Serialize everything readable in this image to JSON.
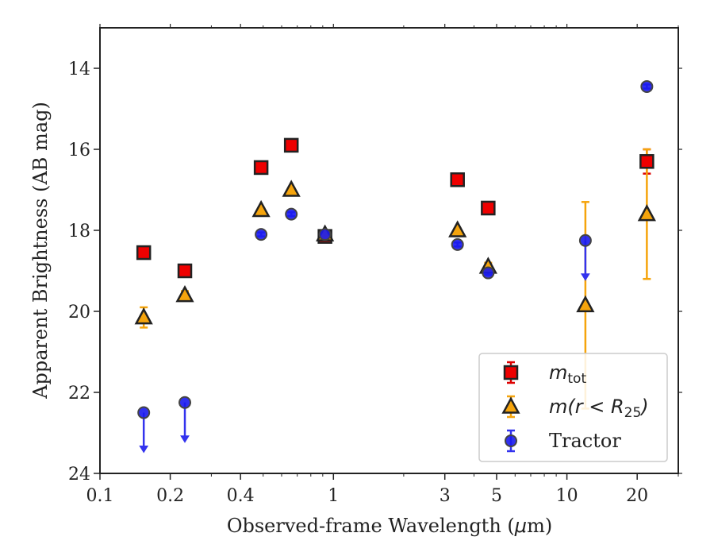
{
  "chart_data": {
    "type": "scatter",
    "xlabel": "Observed-frame Wavelength (μm)",
    "xlabel_parts": [
      "Observed-frame Wavelength (",
      "μ",
      "m)"
    ],
    "ylabel": "Apparent Brightness (AB mag)",
    "xscale": "log",
    "xlim": [
      0.1,
      30
    ],
    "ylim": [
      24,
      13
    ],
    "y_inverted": true,
    "x_ticks": [
      0.1,
      0.2,
      0.4,
      1,
      3,
      5,
      10,
      20
    ],
    "x_tick_labels": [
      "0.1",
      "0.2",
      "0.4",
      "1",
      "3",
      "5",
      "10",
      "20"
    ],
    "y_ticks": [
      14,
      16,
      18,
      20,
      22,
      24
    ],
    "y_tick_labels": [
      "14",
      "16",
      "18",
      "20",
      "22",
      "24"
    ],
    "legend_position": "lower-right",
    "series": [
      {
        "name": "m_tot",
        "legend_main": "m",
        "legend_sub": "tot",
        "marker": "square",
        "face_color": "#ee0000",
        "edge_color": "#222222",
        "error_color": "#dd0000",
        "points": [
          {
            "x": 0.154,
            "y": 18.55,
            "yerr": 0.05
          },
          {
            "x": 0.231,
            "y": 19.0,
            "yerr": 0.05
          },
          {
            "x": 0.49,
            "y": 16.45,
            "yerr": 0.04
          },
          {
            "x": 0.66,
            "y": 15.9,
            "yerr": 0.04
          },
          {
            "x": 0.92,
            "y": 18.15,
            "yerr": 0.05
          },
          {
            "x": 3.4,
            "y": 16.75,
            "yerr": 0.05
          },
          {
            "x": 4.6,
            "y": 17.45,
            "yerr": 0.05
          },
          {
            "x": 22.0,
            "y": 16.3,
            "yerr": 0.3
          }
        ]
      },
      {
        "name": "m(r<R25)",
        "legend_main": "m(r < R",
        "legend_sub": "25",
        "legend_close": ")",
        "marker": "triangle",
        "face_color": "#f5a40c",
        "edge_color": "#222222",
        "error_color": "#f5a40c",
        "points": [
          {
            "x": 0.154,
            "y": 20.15,
            "yerr": 0.25
          },
          {
            "x": 0.231,
            "y": 19.6,
            "yerr": 0.1
          },
          {
            "x": 0.49,
            "y": 17.5,
            "yerr": 0.05
          },
          {
            "x": 0.66,
            "y": 17.0,
            "yerr": 0.05
          },
          {
            "x": 0.92,
            "y": 18.1,
            "yerr": 0.05
          },
          {
            "x": 3.4,
            "y": 18.0,
            "yerr": 0.05
          },
          {
            "x": 4.6,
            "y": 18.9,
            "yerr": 0.1
          },
          {
            "x": 12.0,
            "y": 19.85,
            "yerr": 2.55
          },
          {
            "x": 22.0,
            "y": 17.6,
            "yerr": 1.6
          }
        ]
      },
      {
        "name": "Tractor",
        "legend_main": "Tractor",
        "marker": "circle",
        "face_color": "#1a1aee",
        "edge_color": "#444444",
        "error_color": "#3333ee",
        "points": [
          {
            "x": 0.154,
            "y": 22.5,
            "yerr": 0.0,
            "upper_limit": true
          },
          {
            "x": 0.231,
            "y": 22.25,
            "yerr": 0.0,
            "upper_limit": true
          },
          {
            "x": 0.49,
            "y": 18.1,
            "yerr": 0.05
          },
          {
            "x": 0.66,
            "y": 17.6,
            "yerr": 0.05
          },
          {
            "x": 0.92,
            "y": 18.1,
            "yerr": 0.05
          },
          {
            "x": 3.4,
            "y": 18.35,
            "yerr": 0.05
          },
          {
            "x": 4.6,
            "y": 19.05,
            "yerr": 0.05
          },
          {
            "x": 12.0,
            "y": 18.25,
            "yerr": 0.0,
            "upper_limit": true
          },
          {
            "x": 22.0,
            "y": 14.45,
            "yerr": 0.05
          }
        ]
      }
    ]
  }
}
